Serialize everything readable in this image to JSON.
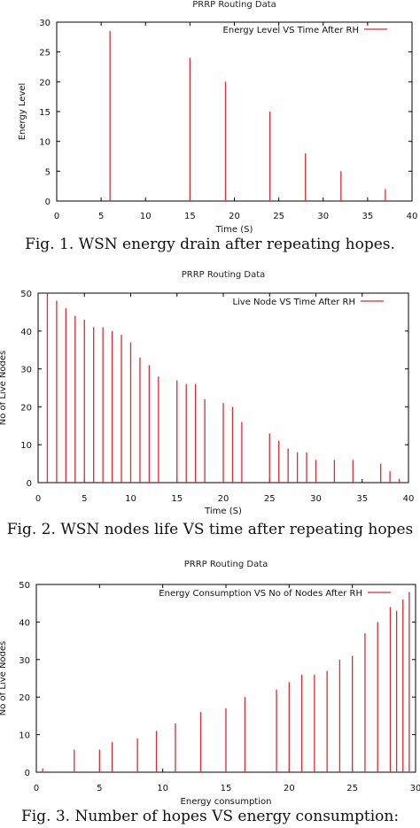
{
  "captions": [
    "Fig. 1. WSN energy drain after repeating hopes.",
    "Fig. 2. WSN nodes life VS time after repeating hopes",
    "Fig. 3. Number of hopes VS energy consumption:"
  ],
  "chart_data": [
    {
      "type": "bar",
      "title": "PRRP Routing Data",
      "xlabel": "Time (S)",
      "ylabel": "Energy Level",
      "xlim": [
        0,
        40
      ],
      "ylim": [
        0,
        30
      ],
      "xticks": [
        0,
        5,
        10,
        15,
        20,
        25,
        30,
        35,
        40
      ],
      "yticks": [
        0,
        5,
        10,
        15,
        20,
        25,
        30
      ],
      "grid": false,
      "legend_position": "top-right",
      "series": [
        {
          "name": "Energy Level VS Time After RH",
          "color": "#e8262b",
          "x": [
            6,
            15,
            19,
            24,
            28,
            32,
            37
          ],
          "y": [
            28.5,
            24,
            20,
            15,
            8,
            5,
            2
          ]
        }
      ]
    },
    {
      "type": "bar",
      "title": "PRRP Routing Data",
      "xlabel": "Time (S)",
      "ylabel": "No of Live Nodes",
      "xlim": [
        0,
        40
      ],
      "ylim": [
        0,
        50
      ],
      "xticks": [
        0,
        5,
        10,
        15,
        20,
        25,
        30,
        35,
        40
      ],
      "yticks": [
        0,
        10,
        20,
        30,
        40,
        50
      ],
      "grid": false,
      "legend_position": "top-right",
      "series": [
        {
          "name": "Live Node VS Time After RH",
          "color": "#e8262b",
          "x": [
            1,
            2,
            3,
            4,
            5,
            6,
            7,
            8,
            9,
            10,
            11,
            12,
            13,
            15,
            16,
            17,
            18,
            20,
            21,
            22,
            25,
            26,
            27,
            28,
            29,
            30,
            32,
            34,
            37,
            38,
            39
          ],
          "y": [
            50,
            48,
            46,
            44,
            43,
            41,
            41,
            40,
            39,
            37,
            33,
            31,
            28,
            27,
            26,
            26,
            22,
            21,
            20,
            16,
            13,
            11,
            9,
            8,
            8,
            6,
            6,
            6,
            5,
            3,
            1
          ]
        }
      ]
    },
    {
      "type": "bar",
      "title": "PRRP Routing Data",
      "xlabel": "Energy consumption",
      "ylabel": "No of Live Nodes",
      "xlim": [
        0,
        30
      ],
      "ylim": [
        0,
        50
      ],
      "xticks": [
        0,
        5,
        10,
        15,
        20,
        25,
        30
      ],
      "yticks": [
        0,
        10,
        20,
        30,
        40,
        50
      ],
      "grid": false,
      "legend_position": "top-right",
      "series": [
        {
          "name": "Energy Consumption VS No of Nodes After RH",
          "color": "#e8262b",
          "x": [
            0.5,
            3,
            5,
            6,
            8,
            9.5,
            11,
            13,
            15,
            16.5,
            19,
            20,
            21,
            22,
            23,
            24,
            25,
            26,
            27,
            28,
            28.5,
            29,
            29.5
          ],
          "y": [
            1,
            6,
            6,
            8,
            9,
            11,
            13,
            16,
            17,
            20,
            22,
            24,
            26,
            26,
            27,
            30,
            31,
            37,
            40,
            44,
            43,
            46,
            48
          ]
        }
      ]
    }
  ]
}
